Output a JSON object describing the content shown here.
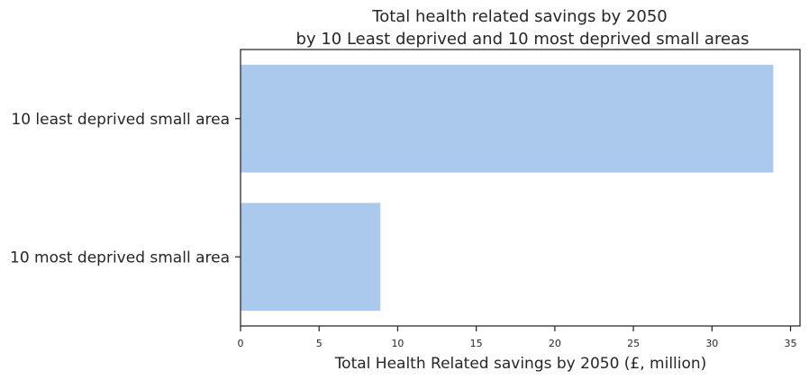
{
  "chart_data": {
    "type": "bar",
    "orientation": "horizontal",
    "title": "Total health related savings by 2050",
    "subtitle": "by 10 Least deprived and 10 most deprived small areas",
    "categories": [
      "10 least deprived small area",
      "10 most deprived small area"
    ],
    "values": [
      33.9,
      8.9
    ],
    "xlabel": "Total Health Related savings by 2050 (£, million)",
    "ylabel": "",
    "xlim": [
      0,
      35.6
    ],
    "xticks": [
      "0",
      "5",
      "10",
      "15",
      "20",
      "25",
      "30",
      "35"
    ],
    "grid": false,
    "bar_color": "#abc9ec"
  }
}
